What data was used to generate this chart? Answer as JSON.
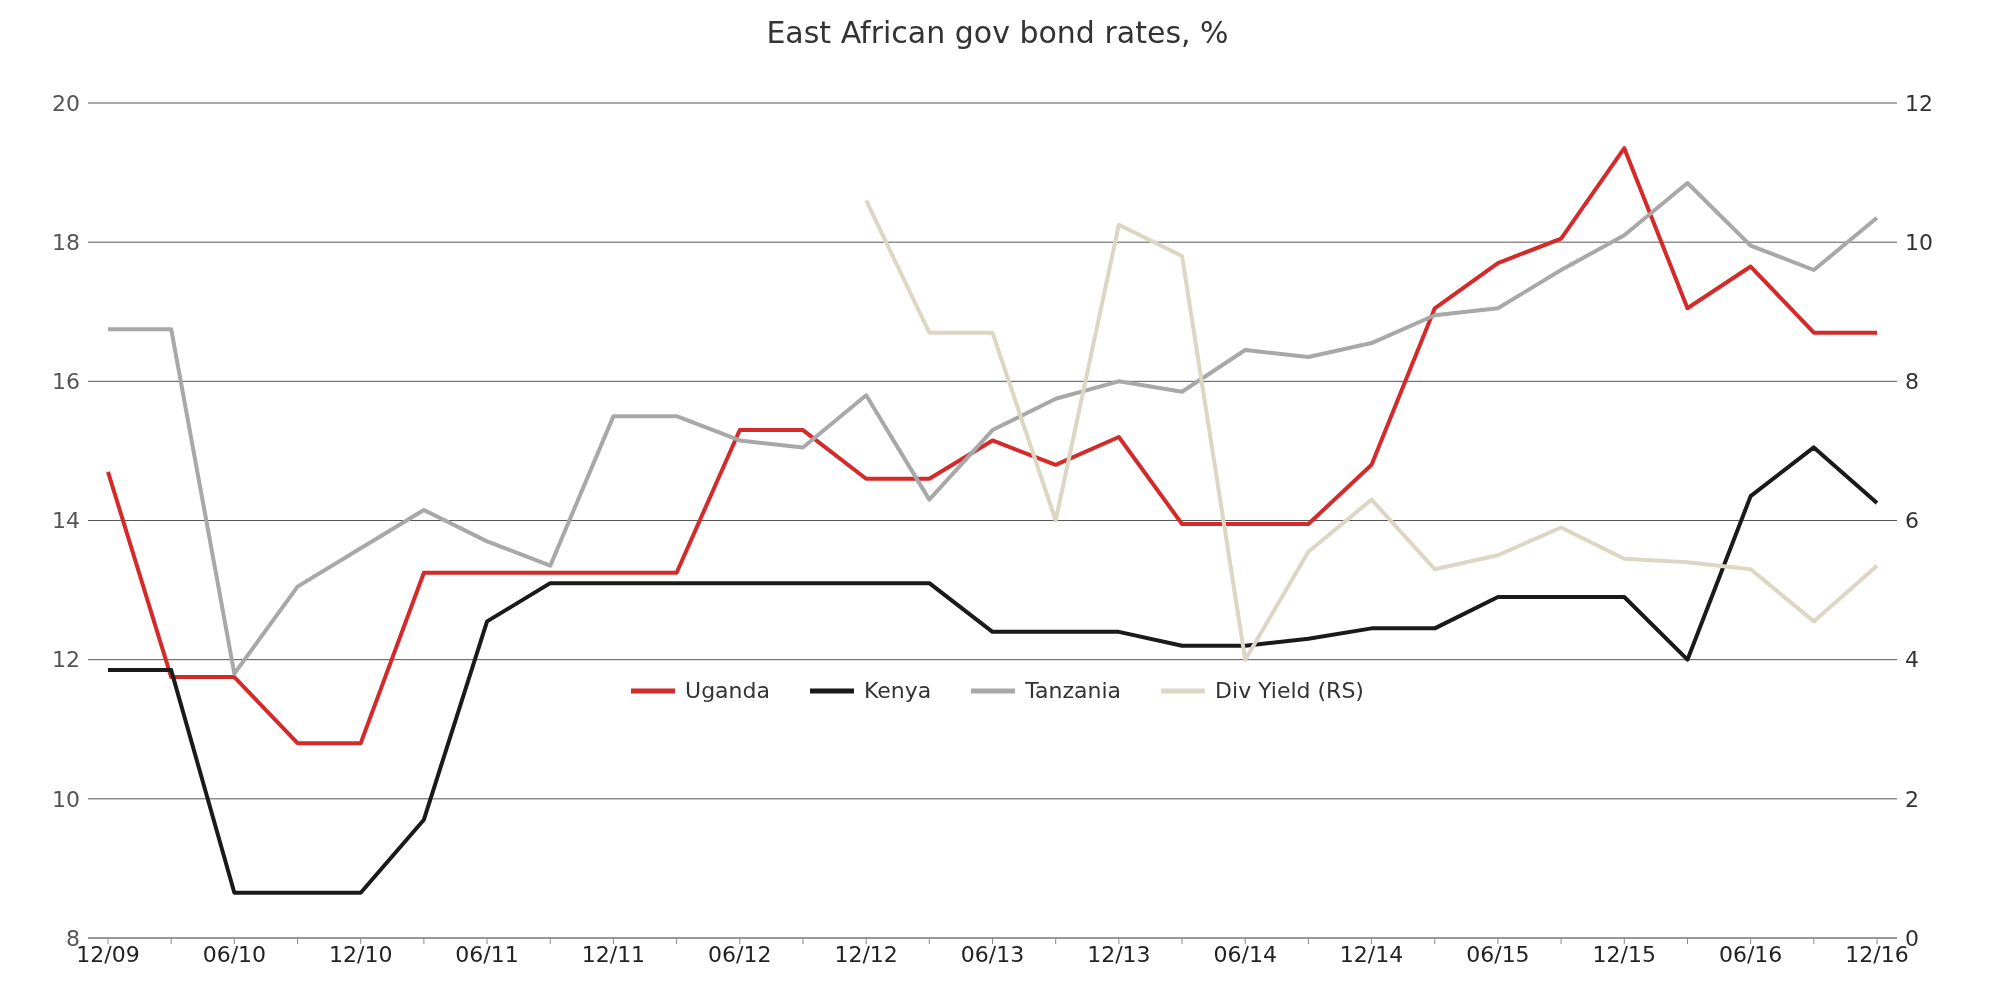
{
  "chart_data": {
    "type": "line",
    "title": "East African gov bond rates, %",
    "categories": [
      "12/09",
      null,
      "06/10",
      null,
      "12/10",
      null,
      "06/11",
      null,
      "12/11",
      null,
      "06/12",
      null,
      "12/12",
      null,
      "06/13",
      null,
      "12/13",
      null,
      "06/14",
      null,
      "12/14",
      null,
      "06/15",
      null,
      "12/15",
      null,
      "06/16",
      null,
      "12/16"
    ],
    "series": [
      {
        "name": "Uganda",
        "color": "#d42a2a",
        "values": [
          14.7,
          11.75,
          11.75,
          10.8,
          10.8,
          13.25,
          13.25,
          13.25,
          13.25,
          13.25,
          15.3,
          15.3,
          14.6,
          14.6,
          15.15,
          14.8,
          15.2,
          13.95,
          13.95,
          13.95,
          14.8,
          17.05,
          17.7,
          18.05,
          19.35,
          17.05,
          17.65,
          16.7,
          16.7
        ]
      },
      {
        "name": "Kenya",
        "color": "#1a1a1a",
        "values": [
          11.85,
          11.85,
          8.65,
          8.65,
          8.65,
          9.7,
          12.55,
          13.1,
          13.1,
          13.1,
          13.1,
          13.1,
          13.1,
          13.1,
          12.4,
          12.4,
          12.4,
          12.2,
          12.2,
          12.3,
          12.45,
          12.45,
          12.9,
          12.9,
          12.9,
          12.0,
          14.35,
          15.05,
          14.25
        ]
      },
      {
        "name": "Tanzania",
        "color": "#a8a8a8",
        "values": [
          16.75,
          16.75,
          11.8,
          13.05,
          13.6,
          14.15,
          13.7,
          13.35,
          15.5,
          15.5,
          15.15,
          15.05,
          15.8,
          14.3,
          15.3,
          15.75,
          16.0,
          15.85,
          16.45,
          16.35,
          16.55,
          16.95,
          17.05,
          17.6,
          18.1,
          18.85,
          17.95,
          17.6,
          18.35
        ]
      },
      {
        "name": "Div Yield (RS)",
        "color": "#dcd6c4",
        "axis": "y2",
        "values": [
          null,
          null,
          null,
          null,
          null,
          null,
          null,
          null,
          null,
          null,
          null,
          null,
          10.6,
          8.7,
          8.7,
          6.0,
          10.25,
          9.8,
          4.0,
          5.55,
          6.3,
          5.3,
          5.5,
          5.9,
          5.45,
          5.4,
          5.3,
          4.55,
          5.35
        ]
      }
    ],
    "ylim": [
      8,
      20
    ],
    "yticks": [
      8,
      10,
      12,
      14,
      16,
      18,
      20
    ],
    "y2lim": [
      0,
      12
    ],
    "y2ticks": [
      0,
      2,
      4,
      6,
      8,
      10,
      12
    ],
    "grid": "y",
    "legend": "bottom",
    "marker": "none",
    "line_style": "solid"
  }
}
